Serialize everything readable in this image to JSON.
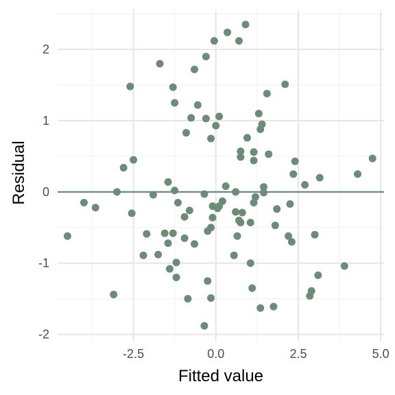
{
  "chart_data": {
    "type": "scatter",
    "xlabel": "Fitted value",
    "ylabel": "Residual",
    "xlim": [
      -4.8,
      5.1
    ],
    "ylim": [
      -2.1,
      2.55
    ],
    "x_ticks": [
      -2.5,
      0,
      2.5,
      5
    ],
    "x_tick_labels": [
      "-2.5",
      "0.0",
      "2.5",
      "5.0"
    ],
    "y_ticks": [
      -2,
      -1,
      0,
      1,
      2
    ],
    "y_tick_labels": [
      "-2",
      "-1",
      "0",
      "1",
      "2"
    ],
    "grid": true,
    "reference_line": {
      "y": 0,
      "color": "#6e8a79"
    },
    "point_color": "#6e8a79",
    "points": [
      {
        "x": -4.5,
        "y": -0.62
      },
      {
        "x": -4.0,
        "y": -0.15
      },
      {
        "x": -3.65,
        "y": -0.22
      },
      {
        "x": -3.1,
        "y": -1.44
      },
      {
        "x": -3.0,
        "y": 0.0
      },
      {
        "x": -2.8,
        "y": 0.34
      },
      {
        "x": -2.6,
        "y": 1.48
      },
      {
        "x": -2.55,
        "y": -0.3
      },
      {
        "x": -2.5,
        "y": 0.45
      },
      {
        "x": -2.2,
        "y": -0.89
      },
      {
        "x": -2.1,
        "y": -0.59
      },
      {
        "x": -1.9,
        "y": -0.04
      },
      {
        "x": -1.75,
        "y": -0.88
      },
      {
        "x": -1.7,
        "y": 1.8
      },
      {
        "x": -1.55,
        "y": -0.58
      },
      {
        "x": -1.45,
        "y": 0.14
      },
      {
        "x": -1.45,
        "y": -0.72
      },
      {
        "x": -1.4,
        "y": -1.08
      },
      {
        "x": -1.3,
        "y": 1.47
      },
      {
        "x": -1.3,
        "y": -0.58
      },
      {
        "x": -1.25,
        "y": 0.02
      },
      {
        "x": -1.25,
        "y": 1.25
      },
      {
        "x": -1.2,
        "y": -0.99
      },
      {
        "x": -1.2,
        "y": -1.2
      },
      {
        "x": -1.15,
        "y": -0.15
      },
      {
        "x": -0.95,
        "y": -0.35
      },
      {
        "x": -0.95,
        "y": -0.65
      },
      {
        "x": -0.9,
        "y": 0.83
      },
      {
        "x": -0.85,
        "y": -1.5
      },
      {
        "x": -0.8,
        "y": -0.26
      },
      {
        "x": -0.75,
        "y": 1.04
      },
      {
        "x": -0.65,
        "y": -0.73
      },
      {
        "x": -0.65,
        "y": 1.72
      },
      {
        "x": -0.55,
        "y": 1.22
      },
      {
        "x": -0.35,
        "y": -0.03
      },
      {
        "x": -0.35,
        "y": -1.88
      },
      {
        "x": -0.3,
        "y": 1.9
      },
      {
        "x": -0.3,
        "y": 1.03
      },
      {
        "x": -0.25,
        "y": -1.25
      },
      {
        "x": -0.25,
        "y": -0.55
      },
      {
        "x": -0.15,
        "y": -0.5
      },
      {
        "x": -0.15,
        "y": -1.49
      },
      {
        "x": -0.15,
        "y": 0.75
      },
      {
        "x": -0.1,
        "y": -0.2
      },
      {
        "x": -0.1,
        "y": -0.36
      },
      {
        "x": -0.05,
        "y": 2.12
      },
      {
        "x": 0.0,
        "y": 0.93
      },
      {
        "x": 0.05,
        "y": -0.23
      },
      {
        "x": 0.1,
        "y": 1.06
      },
      {
        "x": 0.1,
        "y": -0.2
      },
      {
        "x": 0.2,
        "y": -0.13
      },
      {
        "x": 0.3,
        "y": 0.08
      },
      {
        "x": 0.35,
        "y": 2.24
      },
      {
        "x": 0.55,
        "y": -0.89
      },
      {
        "x": 0.6,
        "y": 0.0
      },
      {
        "x": 0.6,
        "y": -0.28
      },
      {
        "x": 0.65,
        "y": -0.62
      },
      {
        "x": 0.7,
        "y": -0.4
      },
      {
        "x": 0.7,
        "y": 2.12
      },
      {
        "x": 0.75,
        "y": 0.57
      },
      {
        "x": 0.75,
        "y": -0.43
      },
      {
        "x": 0.75,
        "y": 0.49
      },
      {
        "x": 0.8,
        "y": -0.29
      },
      {
        "x": 0.9,
        "y": 2.35
      },
      {
        "x": 0.95,
        "y": 0.76
      },
      {
        "x": 1.05,
        "y": -0.43
      },
      {
        "x": 1.05,
        "y": -1.0
      },
      {
        "x": 1.1,
        "y": -1.35
      },
      {
        "x": 1.15,
        "y": 0.56
      },
      {
        "x": 1.15,
        "y": 0.44
      },
      {
        "x": 1.15,
        "y": -0.15
      },
      {
        "x": 1.2,
        "y": -0.07
      },
      {
        "x": 1.3,
        "y": 1.1
      },
      {
        "x": 1.35,
        "y": 0.88
      },
      {
        "x": 1.35,
        "y": -1.63
      },
      {
        "x": 1.4,
        "y": 0.95
      },
      {
        "x": 1.45,
        "y": 0.07
      },
      {
        "x": 1.45,
        "y": -0.01
      },
      {
        "x": 1.55,
        "y": 1.38
      },
      {
        "x": 1.6,
        "y": 0.53
      },
      {
        "x": 1.75,
        "y": -1.61
      },
      {
        "x": 1.8,
        "y": -0.47
      },
      {
        "x": 1.85,
        "y": -0.24
      },
      {
        "x": 2.1,
        "y": 1.51
      },
      {
        "x": 2.2,
        "y": -0.62
      },
      {
        "x": 2.25,
        "y": -0.17
      },
      {
        "x": 2.3,
        "y": -0.7
      },
      {
        "x": 2.35,
        "y": 0.25
      },
      {
        "x": 2.4,
        "y": 0.43
      },
      {
        "x": 2.7,
        "y": 0.1
      },
      {
        "x": 2.85,
        "y": -1.46
      },
      {
        "x": 2.9,
        "y": -1.39
      },
      {
        "x": 3.0,
        "y": -0.6
      },
      {
        "x": 3.1,
        "y": -1.17
      },
      {
        "x": 3.15,
        "y": 0.2
      },
      {
        "x": 3.9,
        "y": -1.04
      },
      {
        "x": 4.3,
        "y": 0.25
      },
      {
        "x": 4.75,
        "y": 0.47
      }
    ]
  }
}
